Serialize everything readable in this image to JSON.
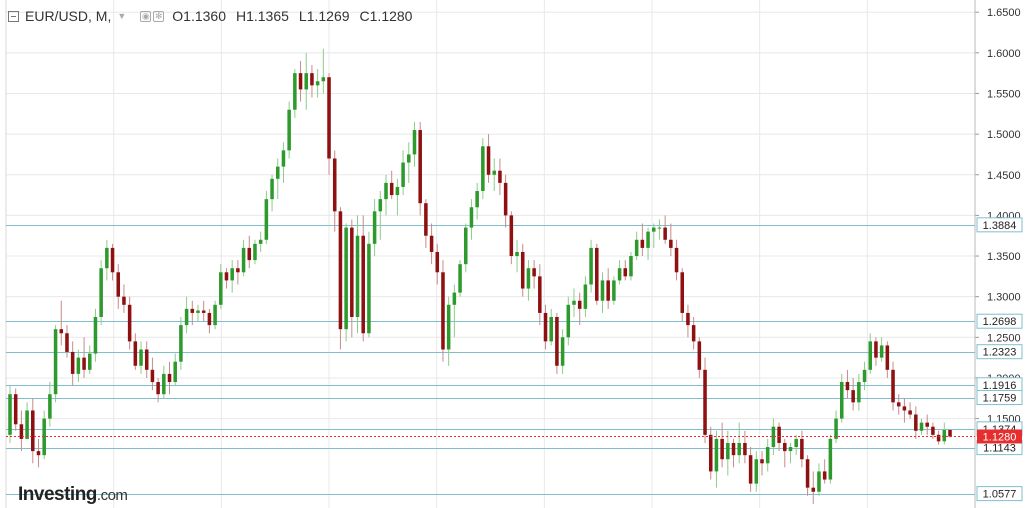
{
  "header": {
    "symbol": "EUR/USD, M,",
    "open": "O1.1360",
    "high": "H1.1365",
    "low": "L1.1269",
    "close": "C1.1280"
  },
  "logo": {
    "name": "Investing",
    "suffix": ".com"
  },
  "colors": {
    "up": "#2e9a2e",
    "down": "#8e1010",
    "level_line": "#7fbfcc",
    "current_price": "#e62e2e",
    "grid": "#e8e8e8"
  },
  "chart_data": {
    "type": "candlestick",
    "instrument": "EUR/USD",
    "timeframe": "M",
    "y_axis": {
      "ylim": [
        1.04,
        1.665
      ],
      "ticks": [
        "1.6500",
        "1.6000",
        "1.5500",
        "1.5000",
        "1.4500",
        "1.4000",
        "1.3500",
        "1.3000",
        "1.2500",
        "1.2000",
        "1.1500"
      ]
    },
    "levels": [
      {
        "label": "1.3884",
        "value": 1.3884
      },
      {
        "label": "1.2698",
        "value": 1.2698
      },
      {
        "label": "1.2323",
        "value": 1.2323
      },
      {
        "label": "1.1916",
        "value": 1.1916
      },
      {
        "label": "1.1759",
        "value": 1.1759
      },
      {
        "label": "1.1374",
        "value": 1.1374
      },
      {
        "label": "1.1143",
        "value": 1.1143
      },
      {
        "label": "1.0577",
        "value": 1.0577
      }
    ],
    "current_price": {
      "label": "1.1280",
      "value": 1.128
    },
    "candles": [
      [
        1.13,
        1.19,
        1.12,
        1.18
      ],
      [
        1.18,
        1.187,
        1.135,
        1.143
      ],
      [
        1.143,
        1.16,
        1.11,
        1.125
      ],
      [
        1.125,
        1.17,
        1.13,
        1.16
      ],
      [
        1.16,
        1.175,
        1.095,
        1.11
      ],
      [
        1.11,
        1.125,
        1.09,
        1.105
      ],
      [
        1.105,
        1.16,
        1.1,
        1.15
      ],
      [
        1.15,
        1.195,
        1.14,
        1.18
      ],
      [
        1.18,
        1.265,
        1.17,
        1.26
      ],
      [
        1.26,
        1.295,
        1.24,
        1.255
      ],
      [
        1.255,
        1.265,
        1.225,
        1.232
      ],
      [
        1.232,
        1.245,
        1.19,
        1.205
      ],
      [
        1.205,
        1.235,
        1.195,
        1.225
      ],
      [
        1.225,
        1.25,
        1.2,
        1.21
      ],
      [
        1.21,
        1.24,
        1.205,
        1.23
      ],
      [
        1.23,
        1.285,
        1.22,
        1.275
      ],
      [
        1.275,
        1.345,
        1.265,
        1.335
      ],
      [
        1.335,
        1.37,
        1.32,
        1.36
      ],
      [
        1.36,
        1.365,
        1.32,
        1.33
      ],
      [
        1.33,
        1.34,
        1.285,
        1.3
      ],
      [
        1.3,
        1.315,
        1.28,
        1.29
      ],
      [
        1.29,
        1.3,
        1.235,
        1.245
      ],
      [
        1.245,
        1.255,
        1.21,
        1.215
      ],
      [
        1.215,
        1.245,
        1.205,
        1.235
      ],
      [
        1.235,
        1.245,
        1.2,
        1.21
      ],
      [
        1.21,
        1.225,
        1.185,
        1.195
      ],
      [
        1.195,
        1.2,
        1.17,
        1.18
      ],
      [
        1.18,
        1.215,
        1.175,
        1.205
      ],
      [
        1.205,
        1.22,
        1.18,
        1.195
      ],
      [
        1.195,
        1.23,
        1.19,
        1.22
      ],
      [
        1.22,
        1.275,
        1.21,
        1.265
      ],
      [
        1.265,
        1.3,
        1.255,
        1.285
      ],
      [
        1.285,
        1.295,
        1.265,
        1.28
      ],
      [
        1.28,
        1.29,
        1.27,
        1.283
      ],
      [
        1.283,
        1.295,
        1.27,
        1.28
      ],
      [
        1.28,
        1.285,
        1.255,
        1.265
      ],
      [
        1.265,
        1.295,
        1.26,
        1.29
      ],
      [
        1.29,
        1.34,
        1.285,
        1.33
      ],
      [
        1.33,
        1.335,
        1.31,
        1.32
      ],
      [
        1.32,
        1.345,
        1.305,
        1.335
      ],
      [
        1.335,
        1.345,
        1.315,
        1.33
      ],
      [
        1.33,
        1.37,
        1.325,
        1.36
      ],
      [
        1.36,
        1.375,
        1.335,
        1.345
      ],
      [
        1.345,
        1.37,
        1.34,
        1.365
      ],
      [
        1.365,
        1.38,
        1.355,
        1.37
      ],
      [
        1.37,
        1.43,
        1.365,
        1.42
      ],
      [
        1.42,
        1.45,
        1.405,
        1.445
      ],
      [
        1.445,
        1.47,
        1.42,
        1.46
      ],
      [
        1.46,
        1.49,
        1.44,
        1.48
      ],
      [
        1.48,
        1.54,
        1.47,
        1.53
      ],
      [
        1.53,
        1.58,
        1.52,
        1.575
      ],
      [
        1.575,
        1.59,
        1.54,
        1.555
      ],
      [
        1.555,
        1.6,
        1.53,
        1.575
      ],
      [
        1.575,
        1.585,
        1.545,
        1.56
      ],
      [
        1.56,
        1.58,
        1.545,
        1.565
      ],
      [
        1.565,
        1.605,
        1.55,
        1.57
      ],
      [
        1.57,
        1.575,
        1.45,
        1.47
      ],
      [
        1.47,
        1.48,
        1.38,
        1.405
      ],
      [
        1.405,
        1.41,
        1.235,
        1.26
      ],
      [
        1.26,
        1.39,
        1.245,
        1.385
      ],
      [
        1.385,
        1.395,
        1.25,
        1.275
      ],
      [
        1.275,
        1.4,
        1.255,
        1.375
      ],
      [
        1.375,
        1.4,
        1.245,
        1.255
      ],
      [
        1.255,
        1.38,
        1.25,
        1.365
      ],
      [
        1.365,
        1.42,
        1.35,
        1.405
      ],
      [
        1.405,
        1.43,
        1.37,
        1.42
      ],
      [
        1.42,
        1.45,
        1.4,
        1.44
      ],
      [
        1.44,
        1.455,
        1.42,
        1.425
      ],
      [
        1.425,
        1.445,
        1.4,
        1.435
      ],
      [
        1.435,
        1.48,
        1.425,
        1.465
      ],
      [
        1.465,
        1.49,
        1.44,
        1.475
      ],
      [
        1.475,
        1.515,
        1.46,
        1.505
      ],
      [
        1.505,
        1.515,
        1.4,
        1.415
      ],
      [
        1.415,
        1.42,
        1.36,
        1.375
      ],
      [
        1.375,
        1.39,
        1.34,
        1.355
      ],
      [
        1.355,
        1.365,
        1.315,
        1.33
      ],
      [
        1.33,
        1.345,
        1.22,
        1.235
      ],
      [
        1.235,
        1.3,
        1.215,
        1.29
      ],
      [
        1.29,
        1.315,
        1.25,
        1.305
      ],
      [
        1.305,
        1.345,
        1.3,
        1.34
      ],
      [
        1.34,
        1.39,
        1.33,
        1.385
      ],
      [
        1.385,
        1.42,
        1.37,
        1.41
      ],
      [
        1.41,
        1.44,
        1.395,
        1.43
      ],
      [
        1.43,
        1.495,
        1.42,
        1.485
      ],
      [
        1.485,
        1.5,
        1.44,
        1.45
      ],
      [
        1.45,
        1.47,
        1.43,
        1.455
      ],
      [
        1.455,
        1.47,
        1.425,
        1.44
      ],
      [
        1.44,
        1.45,
        1.385,
        1.4
      ],
      [
        1.4,
        1.405,
        1.34,
        1.35
      ],
      [
        1.35,
        1.37,
        1.33,
        1.355
      ],
      [
        1.355,
        1.365,
        1.3,
        1.31
      ],
      [
        1.31,
        1.345,
        1.295,
        1.335
      ],
      [
        1.335,
        1.345,
        1.31,
        1.325
      ],
      [
        1.325,
        1.34,
        1.265,
        1.28
      ],
      [
        1.28,
        1.29,
        1.235,
        1.245
      ],
      [
        1.245,
        1.285,
        1.24,
        1.275
      ],
      [
        1.275,
        1.28,
        1.205,
        1.215
      ],
      [
        1.215,
        1.26,
        1.205,
        1.25
      ],
      [
        1.25,
        1.3,
        1.24,
        1.29
      ],
      [
        1.29,
        1.31,
        1.275,
        1.295
      ],
      [
        1.295,
        1.305,
        1.265,
        1.285
      ],
      [
        1.285,
        1.325,
        1.275,
        1.315
      ],
      [
        1.315,
        1.37,
        1.305,
        1.36
      ],
      [
        1.36,
        1.365,
        1.29,
        1.295
      ],
      [
        1.295,
        1.33,
        1.28,
        1.32
      ],
      [
        1.32,
        1.335,
        1.285,
        1.295
      ],
      [
        1.295,
        1.325,
        1.29,
        1.32
      ],
      [
        1.32,
        1.345,
        1.315,
        1.335
      ],
      [
        1.335,
        1.345,
        1.32,
        1.325
      ],
      [
        1.325,
        1.355,
        1.32,
        1.35
      ],
      [
        1.35,
        1.38,
        1.345,
        1.37
      ],
      [
        1.37,
        1.39,
        1.35,
        1.36
      ],
      [
        1.36,
        1.385,
        1.345,
        1.38
      ],
      [
        1.38,
        1.39,
        1.36,
        1.385
      ],
      [
        1.385,
        1.395,
        1.37,
        1.385
      ],
      [
        1.385,
        1.4,
        1.365,
        1.37
      ],
      [
        1.37,
        1.39,
        1.35,
        1.36
      ],
      [
        1.36,
        1.37,
        1.32,
        1.33
      ],
      [
        1.33,
        1.335,
        1.27,
        1.28
      ],
      [
        1.28,
        1.29,
        1.25,
        1.265
      ],
      [
        1.265,
        1.275,
        1.235,
        1.245
      ],
      [
        1.245,
        1.25,
        1.2,
        1.21
      ],
      [
        1.21,
        1.225,
        1.12,
        1.13
      ],
      [
        1.13,
        1.14,
        1.075,
        1.085
      ],
      [
        1.085,
        1.135,
        1.065,
        1.125
      ],
      [
        1.125,
        1.145,
        1.09,
        1.1
      ],
      [
        1.1,
        1.135,
        1.08,
        1.12
      ],
      [
        1.12,
        1.125,
        1.09,
        1.105
      ],
      [
        1.105,
        1.145,
        1.095,
        1.12
      ],
      [
        1.12,
        1.135,
        1.095,
        1.105
      ],
      [
        1.105,
        1.115,
        1.06,
        1.07
      ],
      [
        1.07,
        1.11,
        1.06,
        1.1
      ],
      [
        1.1,
        1.11,
        1.08,
        1.095
      ],
      [
        1.095,
        1.125,
        1.085,
        1.115
      ],
      [
        1.115,
        1.15,
        1.105,
        1.14
      ],
      [
        1.14,
        1.145,
        1.11,
        1.12
      ],
      [
        1.12,
        1.125,
        1.09,
        1.11
      ],
      [
        1.11,
        1.12,
        1.095,
        1.115
      ],
      [
        1.115,
        1.13,
        1.105,
        1.125
      ],
      [
        1.125,
        1.135,
        1.09,
        1.1
      ],
      [
        1.1,
        1.105,
        1.055,
        1.065
      ],
      [
        1.065,
        1.085,
        1.045,
        1.06
      ],
      [
        1.06,
        1.095,
        1.055,
        1.085
      ],
      [
        1.085,
        1.1,
        1.07,
        1.075
      ],
      [
        1.075,
        1.13,
        1.07,
        1.125
      ],
      [
        1.125,
        1.16,
        1.12,
        1.15
      ],
      [
        1.15,
        1.205,
        1.145,
        1.195
      ],
      [
        1.195,
        1.21,
        1.175,
        1.185
      ],
      [
        1.185,
        1.2,
        1.16,
        1.17
      ],
      [
        1.17,
        1.205,
        1.16,
        1.195
      ],
      [
        1.195,
        1.22,
        1.185,
        1.21
      ],
      [
        1.21,
        1.255,
        1.205,
        1.245
      ],
      [
        1.245,
        1.25,
        1.215,
        1.225
      ],
      [
        1.225,
        1.25,
        1.22,
        1.24
      ],
      [
        1.24,
        1.245,
        1.2,
        1.21
      ],
      [
        1.21,
        1.22,
        1.16,
        1.17
      ],
      [
        1.17,
        1.18,
        1.155,
        1.165
      ],
      [
        1.165,
        1.175,
        1.145,
        1.16
      ],
      [
        1.16,
        1.17,
        1.15,
        1.155
      ],
      [
        1.155,
        1.165,
        1.125,
        1.135
      ],
      [
        1.135,
        1.15,
        1.13,
        1.145
      ],
      [
        1.145,
        1.155,
        1.13,
        1.14
      ],
      [
        1.14,
        1.145,
        1.125,
        1.13
      ],
      [
        1.13,
        1.135,
        1.118,
        1.122
      ],
      [
        1.122,
        1.145,
        1.118,
        1.136
      ],
      [
        1.136,
        1.1365,
        1.1269,
        1.128
      ]
    ]
  }
}
